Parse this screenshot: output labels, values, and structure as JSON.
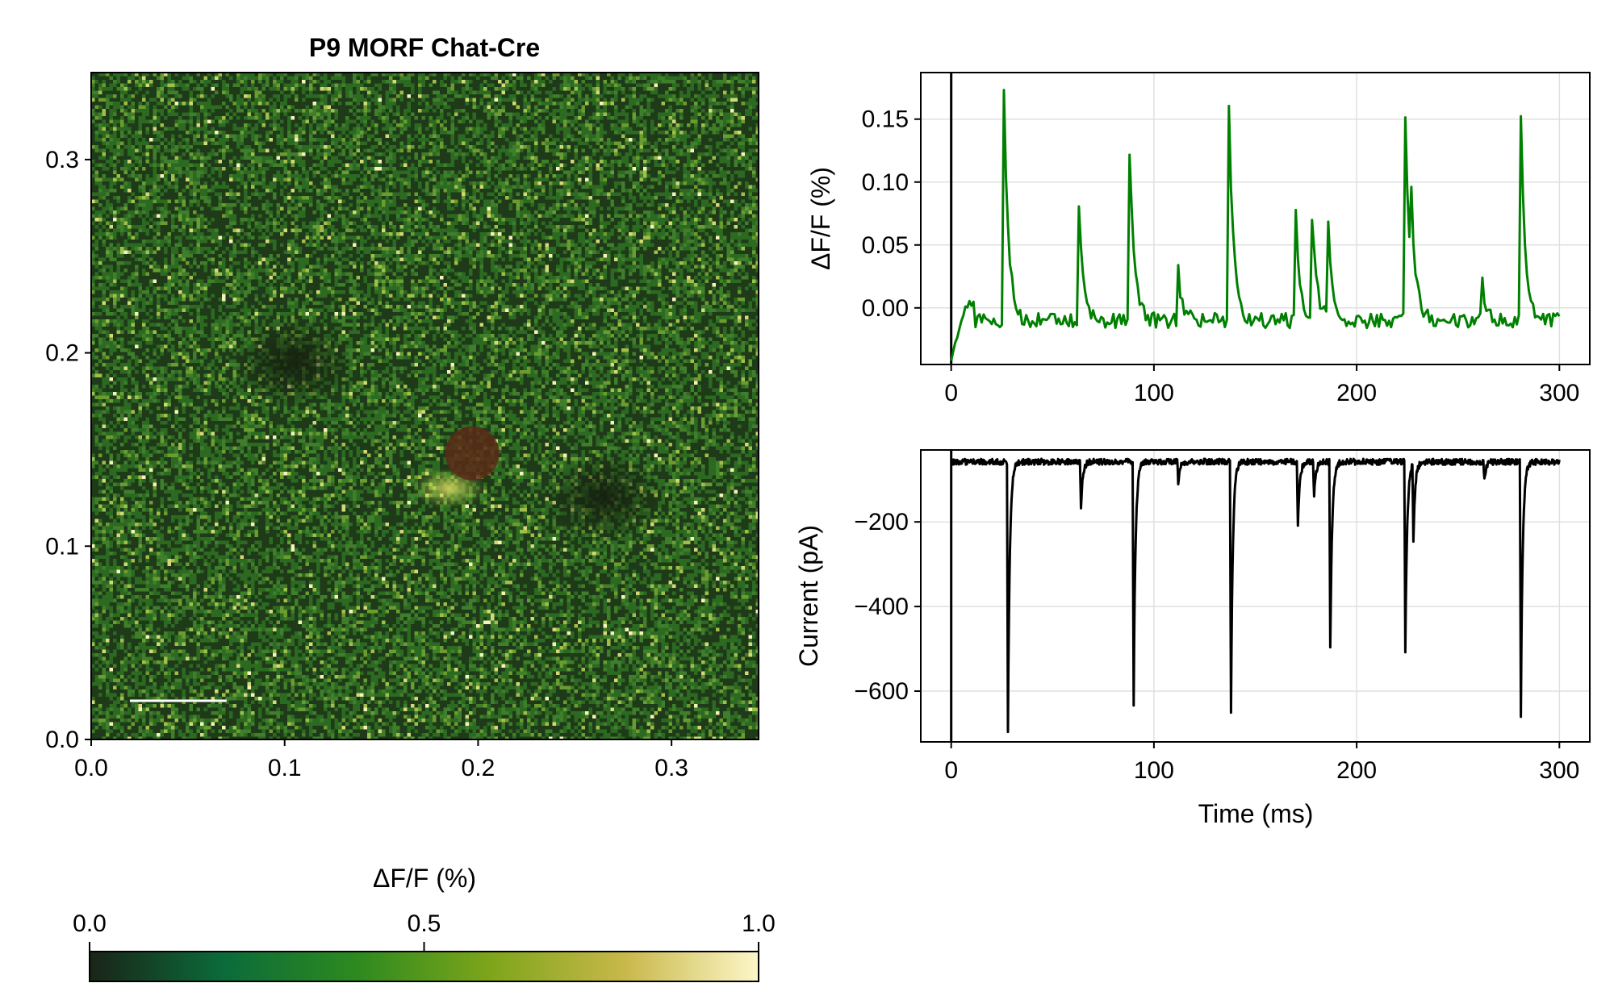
{
  "chart_data": [
    {
      "type": "heatmap",
      "title": "P9 MORF Chat-Cre",
      "xlim": [
        0.0,
        0.345
      ],
      "ylim": [
        0.0,
        0.345
      ],
      "xticks": [
        "0.0",
        "0.1",
        "0.2",
        "0.3"
      ],
      "yticks": [
        "0.0",
        "0.1",
        "0.2",
        "0.3"
      ],
      "grid": false,
      "colorbar": {
        "label": "ΔF/F (%)",
        "ticks": [
          "0.0",
          "0.5",
          "1.0"
        ],
        "range": [
          0.0,
          1.0
        ],
        "colors": [
          "#1a2418",
          "#0b6b3a",
          "#2d8a1f",
          "#7ea51a",
          "#c8b84a",
          "#fdf6c8"
        ]
      },
      "features": {
        "scale_bar": {
          "from": 0.02,
          "to": 0.07,
          "y": 0.02,
          "color": "#ffffff"
        },
        "roi_dot": {
          "x": 0.197,
          "y": 0.148,
          "r": 0.014,
          "color": "#5a2a18"
        },
        "bright_region": {
          "x": 0.185,
          "y": 0.13
        },
        "dark_regions": [
          {
            "x": 0.105,
            "y": 0.195
          },
          {
            "x": 0.265,
            "y": 0.125
          }
        ]
      }
    },
    {
      "type": "line",
      "ylabel": "ΔF/F (%)",
      "xlim": [
        -15,
        315
      ],
      "ylim": [
        -0.045,
        0.187
      ],
      "xticks": [
        0,
        100,
        200,
        300
      ],
      "yticks": [
        "0.15",
        "0.10",
        "0.05",
        "0.00"
      ],
      "ytick_values": [
        0.15,
        0.1,
        0.05,
        0.0
      ],
      "grid": true,
      "vline_x": 0,
      "series": [
        {
          "color": "#008000",
          "x_range": [
            0,
            300
          ],
          "baseline": -0.01,
          "start": -0.04,
          "peaks": [
            {
              "t": 26,
              "a": 0.175
            },
            {
              "t": 63,
              "a": 0.078
            },
            {
              "t": 88,
              "a": 0.123
            },
            {
              "t": 112,
              "a": 0.028
            },
            {
              "t": 137,
              "a": 0.162
            },
            {
              "t": 170,
              "a": 0.073
            },
            {
              "t": 178,
              "a": 0.07
            },
            {
              "t": 186,
              "a": 0.069
            },
            {
              "t": 224,
              "a": 0.155
            },
            {
              "t": 227,
              "a": 0.05
            },
            {
              "t": 262,
              "a": 0.02
            },
            {
              "t": 281,
              "a": 0.155
            }
          ]
        }
      ]
    },
    {
      "type": "line",
      "ylabel": "Current (pA)",
      "xlabel": "Time (ms)",
      "xlim": [
        -15,
        315
      ],
      "ylim": [
        -720,
        -30
      ],
      "xticks": [
        0,
        100,
        200,
        300
      ],
      "yticks": [
        "−200",
        "−400",
        "−600"
      ],
      "ytick_values": [
        -200,
        -400,
        -600
      ],
      "grid": true,
      "vline_x": 0,
      "series": [
        {
          "color": "#000000",
          "x_range": [
            0,
            300
          ],
          "baseline": -58,
          "dips": [
            {
              "t": 28,
              "a": -690
            },
            {
              "t": 64,
              "a": -165
            },
            {
              "t": 90,
              "a": -630
            },
            {
              "t": 112,
              "a": -105
            },
            {
              "t": 138,
              "a": -650
            },
            {
              "t": 171,
              "a": -215
            },
            {
              "t": 179,
              "a": -140
            },
            {
              "t": 187,
              "a": -495
            },
            {
              "t": 224,
              "a": -510
            },
            {
              "t": 228,
              "a": -235
            },
            {
              "t": 263,
              "a": -100
            },
            {
              "t": 281,
              "a": -660
            }
          ]
        }
      ]
    }
  ]
}
